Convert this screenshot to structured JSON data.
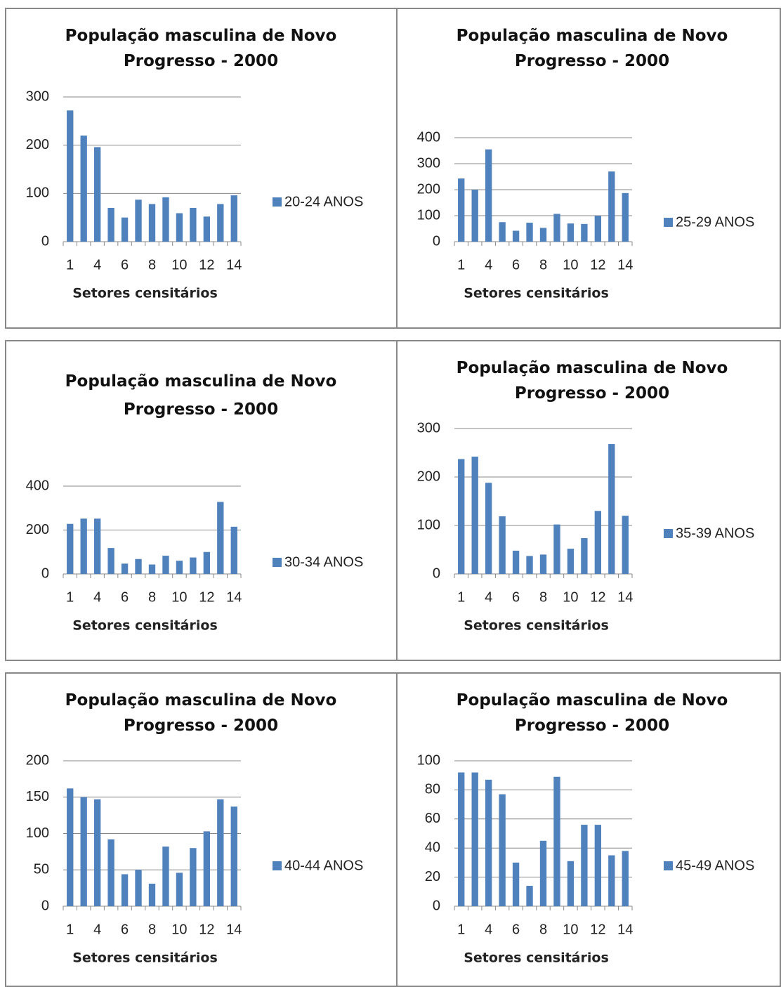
{
  "chart_data": [
    {
      "type": "bar",
      "title": "População masculina de Novo Progresso - 2000",
      "x_label": "Setores censitários",
      "categories": [
        "1",
        null,
        "4",
        null,
        "6",
        null,
        "8",
        null,
        "10",
        null,
        "12",
        null,
        "14"
      ],
      "series": [
        {
          "name": "20-24 ANOS",
          "color": "#4f81bd",
          "values": [
            272,
            220,
            196,
            70,
            50,
            87,
            78,
            92,
            59,
            70,
            52,
            78,
            96
          ]
        }
      ],
      "ylim": [
        0,
        300
      ],
      "yticks": [
        0,
        100,
        200,
        300
      ],
      "grid": true
    },
    {
      "type": "bar",
      "title": "População masculina de Novo Progresso - 2000",
      "x_label": "Setores censitários",
      "categories": [
        "1",
        null,
        "4",
        null,
        "6",
        null,
        "8",
        null,
        "10",
        null,
        "12",
        null,
        "14"
      ],
      "series": [
        {
          "name": "25-29 ANOS",
          "color": "#4f81bd",
          "values": [
            243,
            200,
            355,
            75,
            42,
            73,
            53,
            107,
            70,
            68,
            100,
            270,
            187
          ]
        }
      ],
      "ylim": [
        0,
        400
      ],
      "yticks": [
        0,
        100,
        200,
        300,
        400
      ],
      "grid": true
    },
    {
      "type": "bar",
      "title": "População  masculina de Novo Progresso - 2000",
      "x_label": "Setores censitários",
      "categories": [
        "1",
        null,
        "4",
        null,
        "6",
        null,
        "8",
        null,
        "10",
        null,
        "12",
        null,
        "14"
      ],
      "series": [
        {
          "name": "30-34 ANOS",
          "color": "#4f81bd",
          "values": [
            228,
            252,
            252,
            118,
            47,
            68,
            43,
            83,
            60,
            75,
            100,
            328,
            215
          ]
        }
      ],
      "ylim": [
        0,
        400
      ],
      "yticks": [
        0,
        200,
        400
      ],
      "grid": true
    },
    {
      "type": "bar",
      "title": "População masculina de Novo Progresso - 2000",
      "x_label": "Setores censitários",
      "categories": [
        "1",
        null,
        "4",
        null,
        "6",
        null,
        "8",
        null,
        "10",
        null,
        "12",
        null,
        "14"
      ],
      "series": [
        {
          "name": "35-39 ANOS",
          "color": "#4f81bd",
          "values": [
            237,
            242,
            188,
            119,
            48,
            37,
            40,
            102,
            52,
            74,
            130,
            268,
            120
          ]
        }
      ],
      "ylim": [
        0,
        300
      ],
      "yticks": [
        0,
        100,
        200,
        300
      ],
      "grid": true
    },
    {
      "type": "bar",
      "title": "População masculina de Novo Progresso - 2000",
      "x_label": "Setores censitários",
      "categories": [
        "1",
        null,
        "4",
        null,
        "6",
        null,
        "8",
        null,
        "10",
        null,
        "12",
        null,
        "14"
      ],
      "series": [
        {
          "name": "40-44 ANOS",
          "color": "#4f81bd",
          "values": [
            162,
            150,
            147,
            92,
            44,
            50,
            31,
            82,
            46,
            80,
            103,
            147,
            137
          ]
        }
      ],
      "ylim": [
        0,
        200
      ],
      "yticks": [
        0,
        50,
        100,
        150,
        200
      ],
      "grid": true
    },
    {
      "type": "bar",
      "title": "População masculina de Novo Progresso - 2000",
      "x_label": "Setores censitários",
      "categories": [
        "1",
        null,
        "4",
        null,
        "6",
        null,
        "8",
        null,
        "10",
        null,
        "12",
        null,
        "14"
      ],
      "series": [
        {
          "name": "45-49 ANOS",
          "color": "#4f81bd",
          "values": [
            92,
            92,
            87,
            77,
            30,
            14,
            45,
            89,
            31,
            56,
            56,
            35,
            38
          ]
        }
      ],
      "ylim": [
        0,
        100
      ],
      "yticks": [
        0,
        20,
        40,
        60,
        80,
        100
      ],
      "grid": true
    }
  ]
}
